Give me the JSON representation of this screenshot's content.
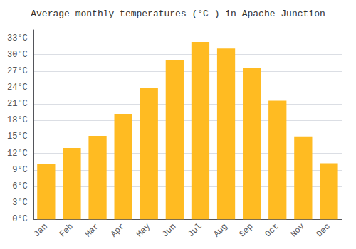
{
  "chart_data": {
    "type": "bar",
    "title": "Average monthly temperatures (°C ) in Apache Junction",
    "categories": [
      "Jan",
      "Feb",
      "Mar",
      "Apr",
      "May",
      "Jun",
      "Jul",
      "Aug",
      "Sep",
      "Oct",
      "Nov",
      "Dec"
    ],
    "values": [
      10.1,
      13.0,
      15.2,
      19.2,
      24.0,
      29.0,
      32.3,
      31.1,
      27.5,
      21.6,
      15.1,
      10.2
    ],
    "color": "#FFBB22",
    "ylim": [
      0,
      34.5
    ],
    "yticks": [
      {
        "value": 0,
        "label": "0°C"
      },
      {
        "value": 3,
        "label": "3°C"
      },
      {
        "value": 6,
        "label": "6°C"
      },
      {
        "value": 9,
        "label": "9°C"
      },
      {
        "value": 12,
        "label": "12°C"
      },
      {
        "value": 15,
        "label": "15°C"
      },
      {
        "value": 18,
        "label": "18°C"
      },
      {
        "value": 21,
        "label": "21°C"
      },
      {
        "value": 24,
        "label": "24°C"
      },
      {
        "value": 27,
        "label": "27°C"
      },
      {
        "value": 30,
        "label": "30°C"
      },
      {
        "value": 33,
        "label": "33°C"
      }
    ],
    "grid": true
  }
}
